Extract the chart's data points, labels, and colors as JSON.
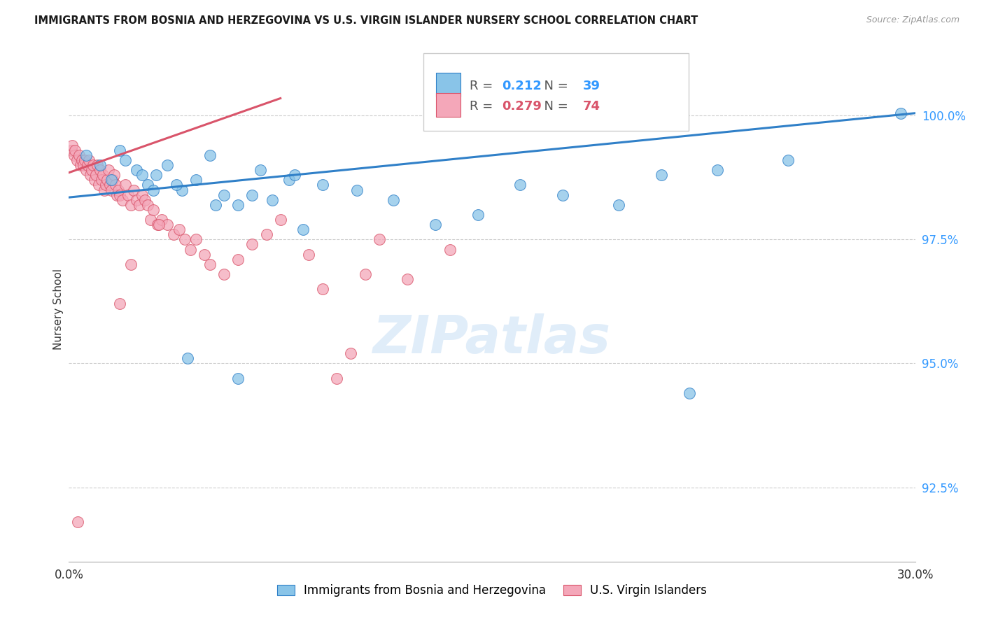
{
  "title": "IMMIGRANTS FROM BOSNIA AND HERZEGOVINA VS U.S. VIRGIN ISLANDER NURSERY SCHOOL CORRELATION CHART",
  "source": "Source: ZipAtlas.com",
  "ylabel": "Nursery School",
  "y_ticks": [
    92.5,
    95.0,
    97.5,
    100.0
  ],
  "y_tick_labels": [
    "92.5%",
    "95.0%",
    "97.5%",
    "100.0%"
  ],
  "xlim": [
    0.0,
    30.0
  ],
  "ylim": [
    91.0,
    101.2
  ],
  "blue_R": "0.212",
  "blue_N": "39",
  "pink_R": "0.279",
  "pink_N": "74",
  "blue_color": "#89c4e8",
  "pink_color": "#f4a7b9",
  "blue_line_color": "#3080c8",
  "pink_line_color": "#d9546a",
  "legend_label_blue": "Immigrants from Bosnia and Herzegovina",
  "legend_label_pink": "U.S. Virgin Islanders",
  "watermark": "ZIPatlas",
  "blue_line_x": [
    0.0,
    30.0
  ],
  "blue_line_y": [
    98.35,
    100.05
  ],
  "pink_line_x": [
    0.0,
    7.5
  ],
  "pink_line_y": [
    98.85,
    100.35
  ],
  "blue_x": [
    0.6,
    1.1,
    1.5,
    2.0,
    2.4,
    2.8,
    3.1,
    3.5,
    4.0,
    4.5,
    5.0,
    5.5,
    6.0,
    6.8,
    7.2,
    7.8,
    8.3,
    9.0,
    10.2,
    11.5,
    13.0,
    14.5,
    16.0,
    17.5,
    19.5,
    21.0,
    23.0,
    25.5,
    29.5,
    1.8,
    2.6,
    3.8,
    5.2,
    6.5,
    8.0,
    3.0,
    4.2,
    6.0,
    22.0
  ],
  "blue_y": [
    99.2,
    99.0,
    98.7,
    99.1,
    98.9,
    98.6,
    98.8,
    99.0,
    98.5,
    98.7,
    99.2,
    98.4,
    98.2,
    98.9,
    98.3,
    98.7,
    97.7,
    98.6,
    98.5,
    98.3,
    97.8,
    98.0,
    98.6,
    98.4,
    98.2,
    98.8,
    98.9,
    99.1,
    100.05,
    99.3,
    98.8,
    98.6,
    98.2,
    98.4,
    98.8,
    98.5,
    95.1,
    94.7,
    94.4
  ],
  "pink_x": [
    0.08,
    0.12,
    0.18,
    0.22,
    0.28,
    0.35,
    0.4,
    0.45,
    0.5,
    0.55,
    0.6,
    0.65,
    0.7,
    0.75,
    0.8,
    0.85,
    0.9,
    0.95,
    1.0,
    1.05,
    1.1,
    1.15,
    1.2,
    1.25,
    1.3,
    1.35,
    1.4,
    1.45,
    1.5,
    1.55,
    1.6,
    1.65,
    1.7,
    1.75,
    1.8,
    1.9,
    2.0,
    2.1,
    2.2,
    2.3,
    2.4,
    2.5,
    2.6,
    2.7,
    2.8,
    2.9,
    3.0,
    3.15,
    3.3,
    3.5,
    3.7,
    3.9,
    4.1,
    4.3,
    4.5,
    4.8,
    5.0,
    5.5,
    6.0,
    6.5,
    7.0,
    7.5,
    8.5,
    9.0,
    10.5,
    11.0,
    12.0,
    2.2,
    1.8,
    3.2,
    9.5,
    10.0,
    13.5,
    0.3
  ],
  "pink_y": [
    99.3,
    99.4,
    99.2,
    99.3,
    99.1,
    99.2,
    99.0,
    99.1,
    99.0,
    99.1,
    98.9,
    99.0,
    99.1,
    98.8,
    98.9,
    99.0,
    98.7,
    98.8,
    99.0,
    98.6,
    98.9,
    98.7,
    98.8,
    98.5,
    98.6,
    98.7,
    98.9,
    98.6,
    98.5,
    98.7,
    98.8,
    98.6,
    98.4,
    98.5,
    98.4,
    98.3,
    98.6,
    98.4,
    98.2,
    98.5,
    98.3,
    98.2,
    98.4,
    98.3,
    98.2,
    97.9,
    98.1,
    97.8,
    97.9,
    97.8,
    97.6,
    97.7,
    97.5,
    97.3,
    97.5,
    97.2,
    97.0,
    96.8,
    97.1,
    97.4,
    97.6,
    97.9,
    97.2,
    96.5,
    96.8,
    97.5,
    96.7,
    97.0,
    96.2,
    97.8,
    94.7,
    95.2,
    97.3,
    91.8
  ]
}
